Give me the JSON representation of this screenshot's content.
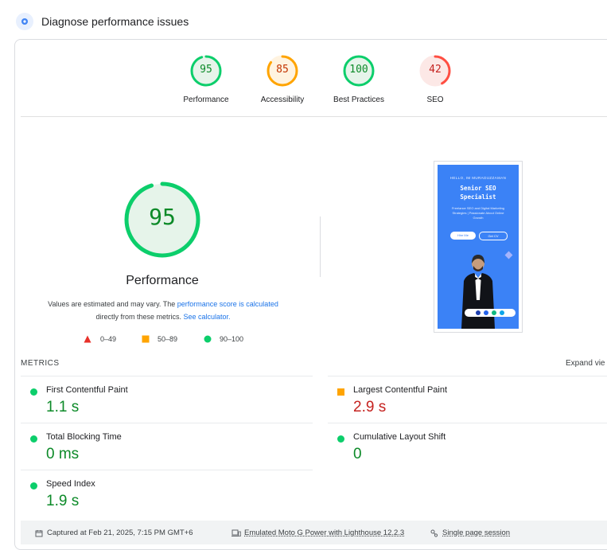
{
  "header": {
    "title": "Diagnose performance issues",
    "icon": "lighthouse-icon"
  },
  "categories": [
    {
      "score": "95",
      "label": "Performance",
      "value": 95,
      "status": "pass",
      "color": "#0cce6b"
    },
    {
      "score": "85",
      "label": "Accessibility",
      "value": 85,
      "status": "average",
      "color": "#ffa400"
    },
    {
      "score": "100",
      "label": "Best Practices",
      "value": 100,
      "status": "pass",
      "color": "#0cce6b"
    },
    {
      "score": "42",
      "label": "SEO",
      "value": 42,
      "status": "fail",
      "color": "#ff4e42"
    }
  ],
  "performance": {
    "score": "95",
    "value": 95,
    "title": "Performance",
    "desc_1": "Values are estimated and may vary. The ",
    "desc_link_1": "performance score is calculated",
    "desc_2": "directly from these metrics. ",
    "desc_link_2": "See calculator.",
    "legend": [
      {
        "range": "0–49",
        "shape": "triangle",
        "color": "#ff4e42"
      },
      {
        "range": "50–89",
        "shape": "square",
        "color": "#ffa400"
      },
      {
        "range": "90–100",
        "shape": "circle",
        "color": "#0cce6b"
      }
    ]
  },
  "screenshot": {
    "greeting": "HELLO, IM MURADUZZAMAN",
    "title_line1": "Senior SEO",
    "title_line2": "Specialist",
    "subtitle": "Freelance SEO and Digital Marketing Strategies | Passionate About Online Growth",
    "btn_hire": "Hire Me",
    "btn_cv": "Get CV"
  },
  "metrics": {
    "heading": "METRICS",
    "expand": "Expand vie",
    "items": [
      {
        "name": "First Contentful Paint",
        "value": "1.1 s",
        "status": "pass"
      },
      {
        "name": "Largest Contentful Paint",
        "value": "2.9 s",
        "status": "average"
      },
      {
        "name": "Total Blocking Time",
        "value": "0 ms",
        "status": "pass"
      },
      {
        "name": "Cumulative Layout Shift",
        "value": "0",
        "status": "pass"
      },
      {
        "name": "Speed Index",
        "value": "1.9 s",
        "status": "pass"
      }
    ]
  },
  "footer": {
    "captured": "Captured at Feb 21, 2025, 7:15 PM GMT+6",
    "device": "Emulated Moto G Power with Lighthouse 12.2.3",
    "session": "Single page session"
  }
}
